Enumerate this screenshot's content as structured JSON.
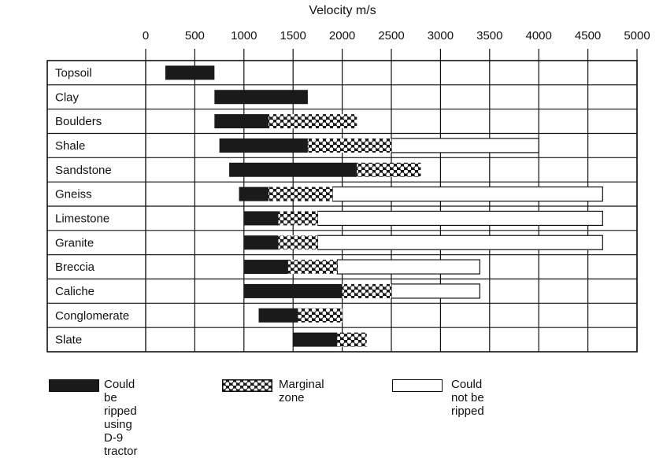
{
  "chart_data": {
    "type": "bar",
    "subtype": "floating-range-horizontal",
    "title": "Velocity m/s",
    "xlim": [
      0,
      5000
    ],
    "xticks": [
      0,
      500,
      1000,
      1500,
      2000,
      2500,
      3000,
      3500,
      4000,
      4500,
      5000
    ],
    "grid": true,
    "legend_placement": "bottom",
    "categories": [
      "Topsoil",
      "Clay",
      "Boulders",
      "Shale",
      "Sandstone",
      "Gneiss",
      "Limestone",
      "Granite",
      "Breccia",
      "Caliche",
      "Conglomerate",
      "Slate"
    ],
    "series": [
      {
        "name": "Could be ripped using D-9 tractor",
        "pattern": "solid",
        "color": "#1a1a1a",
        "ranges": [
          [
            200,
            700
          ],
          [
            700,
            1650
          ],
          [
            700,
            1250
          ],
          [
            750,
            1650
          ],
          [
            850,
            2150
          ],
          [
            950,
            1250
          ],
          [
            1000,
            1350
          ],
          [
            1000,
            1350
          ],
          [
            1000,
            1450
          ],
          [
            1000,
            2000
          ],
          [
            1150,
            1550
          ],
          [
            1500,
            1950
          ]
        ]
      },
      {
        "name": "Marginal zone",
        "pattern": "dotted",
        "color": "#1a1a1a",
        "ranges": [
          null,
          null,
          [
            1250,
            2150
          ],
          [
            1650,
            2500
          ],
          [
            2150,
            2800
          ],
          [
            1250,
            1900
          ],
          [
            1350,
            1750
          ],
          [
            1350,
            1750
          ],
          [
            1450,
            1950
          ],
          [
            2000,
            2500
          ],
          [
            1550,
            2000
          ],
          [
            1950,
            2250
          ]
        ]
      },
      {
        "name": "Could not be\nripped",
        "pattern": "open",
        "color": "#ffffff",
        "ranges": [
          null,
          null,
          null,
          [
            2500,
            4000
          ],
          null,
          [
            1900,
            4650
          ],
          [
            1750,
            4650
          ],
          [
            1750,
            4650
          ],
          [
            1950,
            3400
          ],
          [
            2500,
            3400
          ],
          null,
          null
        ]
      }
    ]
  },
  "legend": {
    "items": [
      {
        "label": "Could be ripped\nusing D-9 tractor"
      },
      {
        "label": "Marginal zone"
      },
      {
        "label": "Could not be\nripped"
      }
    ]
  }
}
